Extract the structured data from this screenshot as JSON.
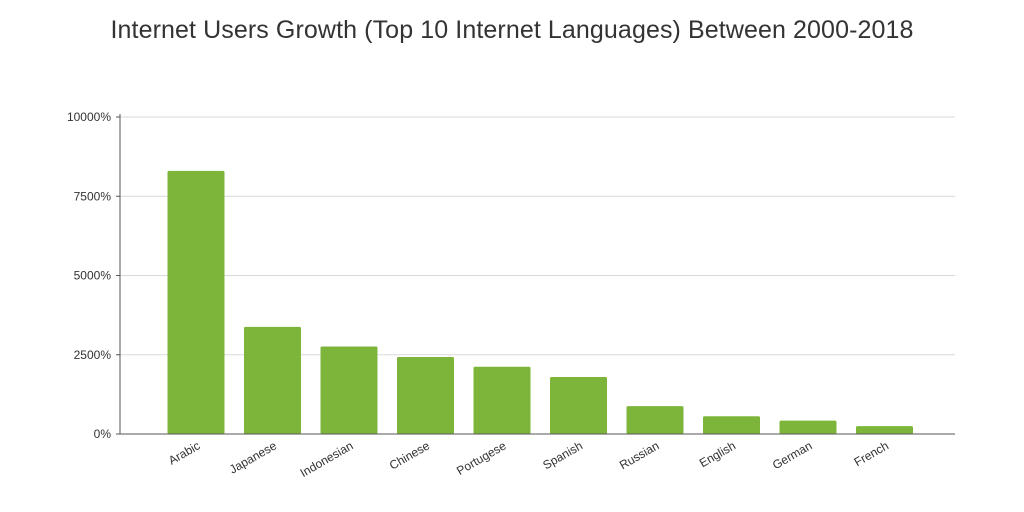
{
  "chart_data": {
    "type": "bar",
    "title": "Internet Users Growth (Top 10 Internet Languages) Between 2000-2018",
    "xlabel": "",
    "ylabel": "",
    "categories": [
      "Arabic",
      "Japanese",
      "Indonesian",
      "Chinese",
      "Portugese",
      "Spanish",
      "Russian",
      "English",
      "German",
      "French"
    ],
    "values": [
      8300,
      3380,
      2760,
      2430,
      2120,
      1800,
      880,
      560,
      420,
      250
    ],
    "ylim": [
      0,
      10000
    ],
    "yticks": [
      {
        "value": 0,
        "label": "0%"
      },
      {
        "value": 2500,
        "label": "2500%"
      },
      {
        "value": 5000,
        "label": "5000%"
      },
      {
        "value": 7500,
        "label": "7500%"
      },
      {
        "value": 10000,
        "label": "10000%"
      }
    ],
    "bar_color": "#7db53a",
    "grid": true,
    "legend": "none"
  }
}
